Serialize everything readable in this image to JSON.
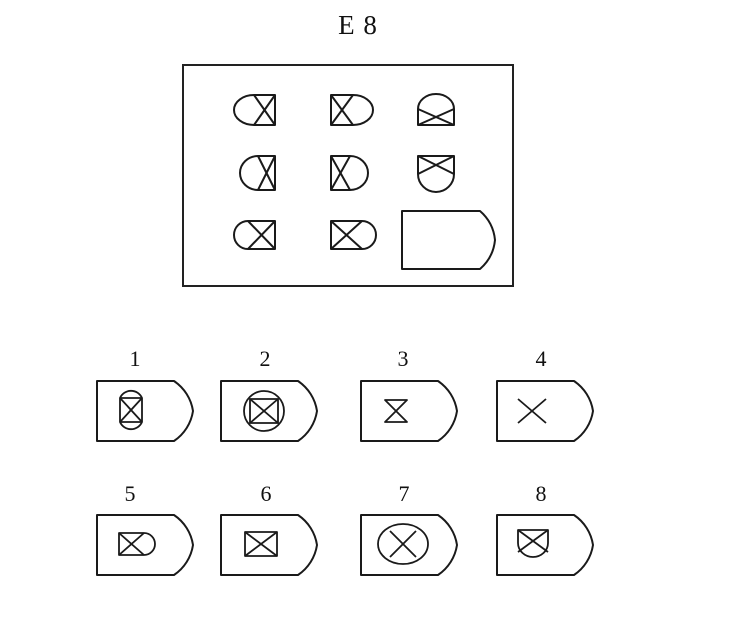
{
  "header": {
    "title": "E 8"
  },
  "options": [
    {
      "number": "1"
    },
    {
      "number": "2"
    },
    {
      "number": "3"
    },
    {
      "number": "4"
    },
    {
      "number": "5"
    },
    {
      "number": "6"
    },
    {
      "number": "7"
    },
    {
      "number": "8"
    }
  ]
}
